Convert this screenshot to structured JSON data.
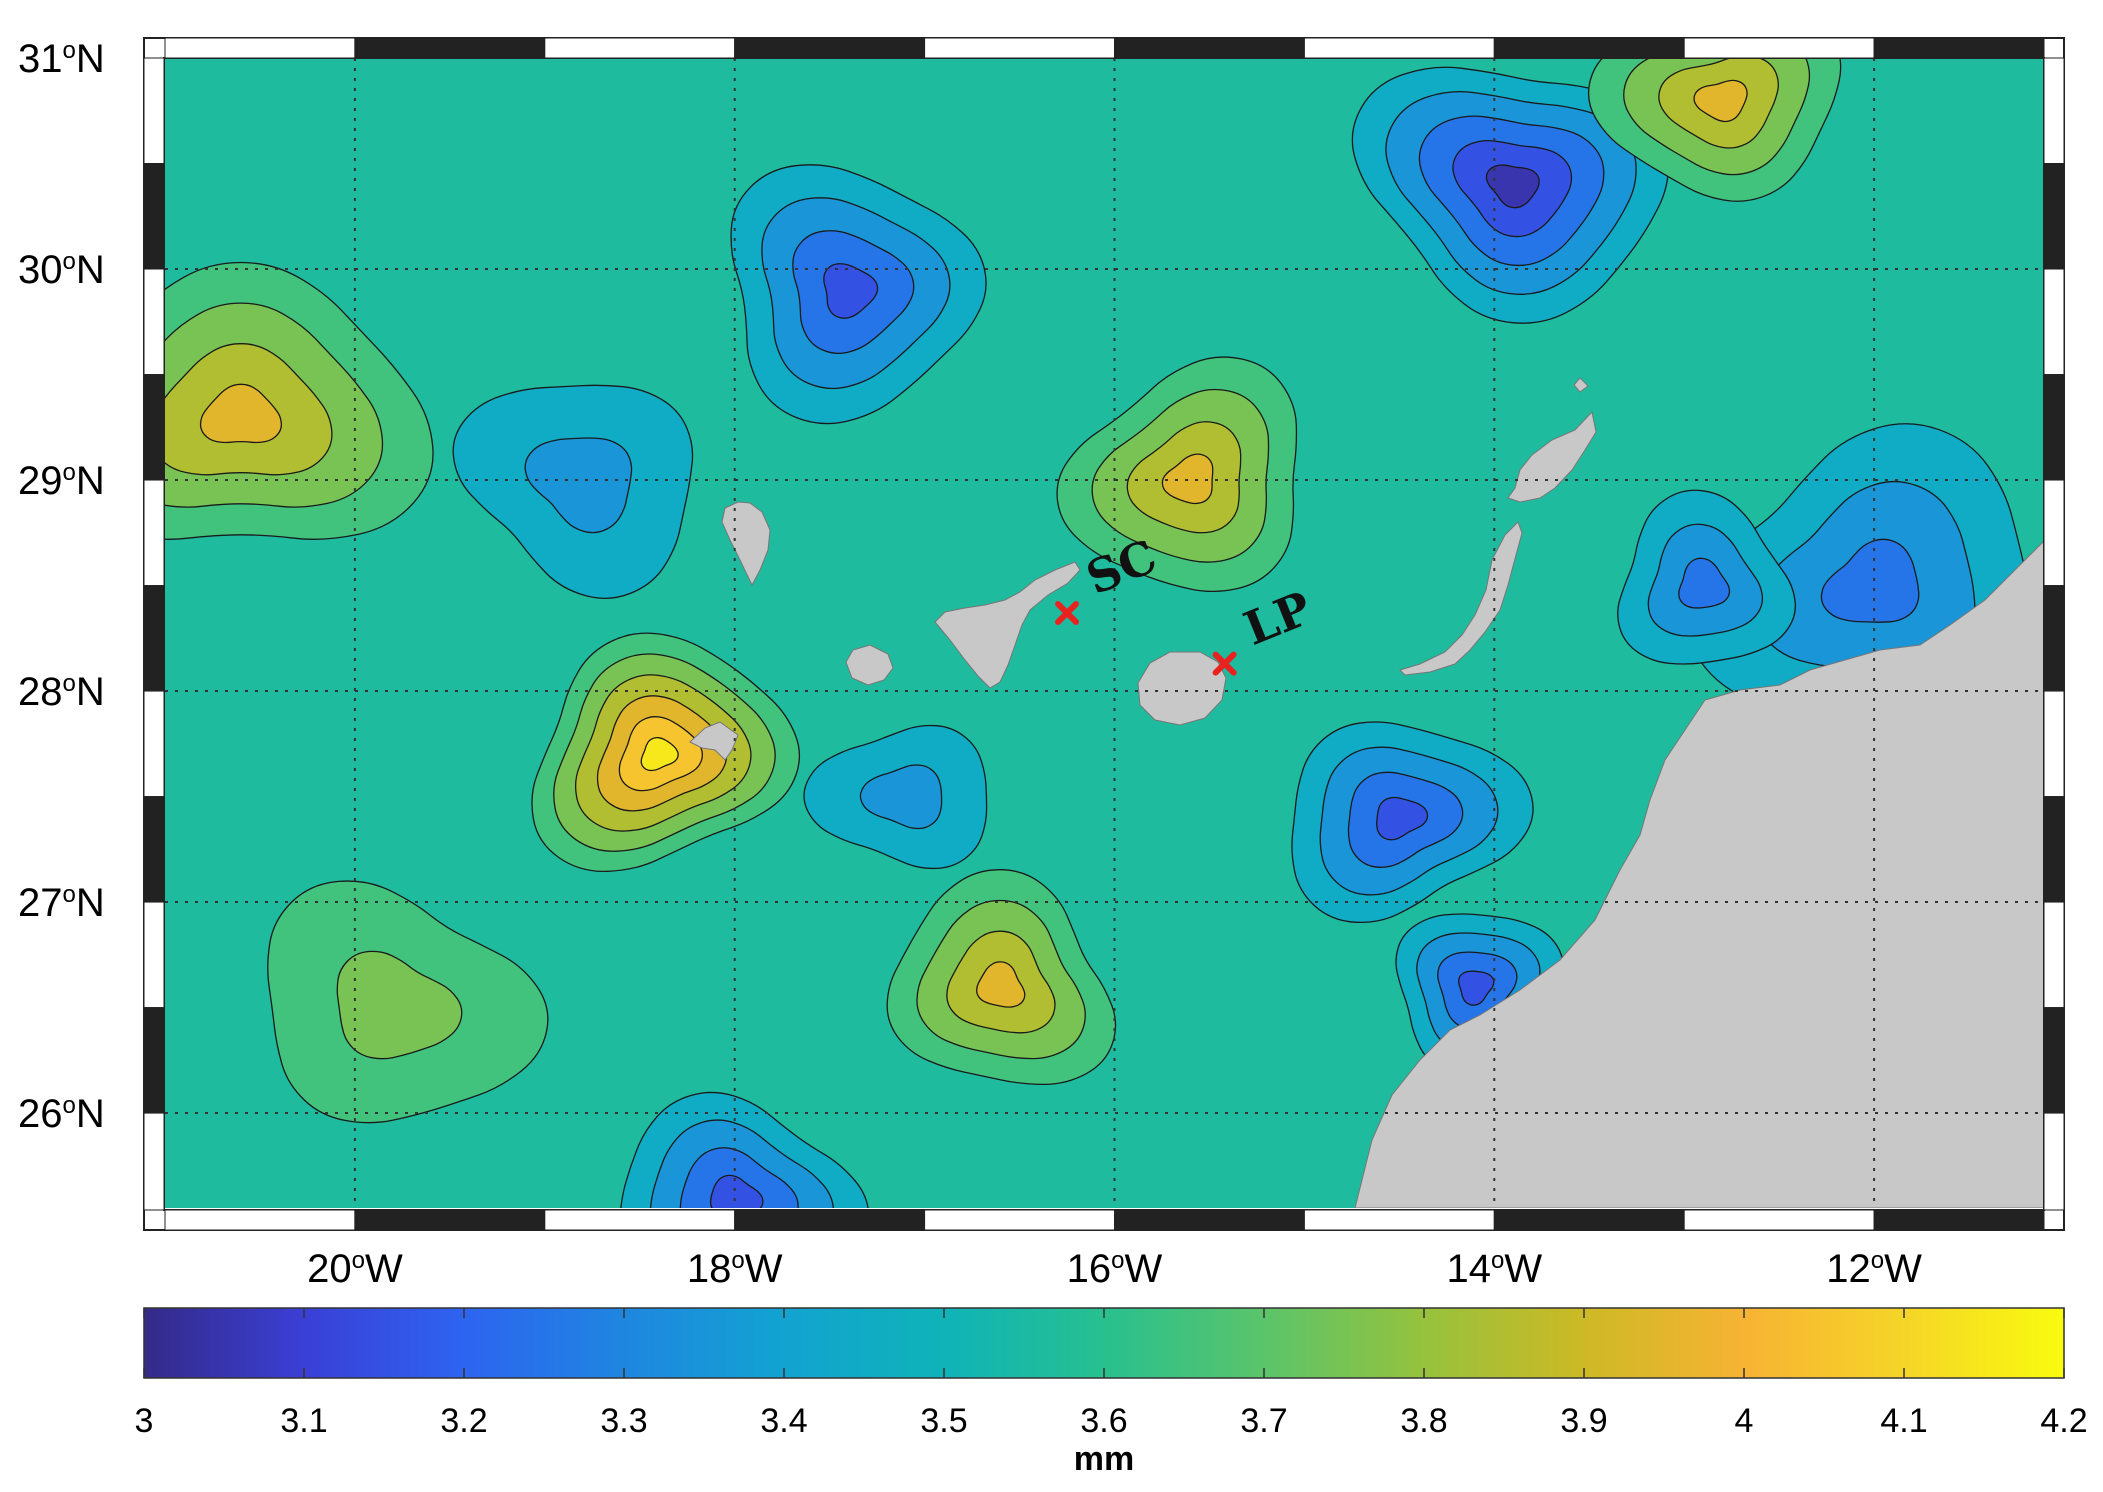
{
  "map": {
    "latitude_ticks": [
      {
        "value": 31,
        "deg": "31",
        "hemi": "N"
      },
      {
        "value": 30,
        "deg": "30",
        "hemi": "N"
      },
      {
        "value": 29,
        "deg": "29",
        "hemi": "N"
      },
      {
        "value": 28,
        "deg": "28",
        "hemi": "N"
      },
      {
        "value": 27,
        "deg": "27",
        "hemi": "N"
      },
      {
        "value": 26,
        "deg": "26",
        "hemi": "N"
      }
    ],
    "longitude_ticks": [
      {
        "value": -20,
        "deg": "20",
        "hemi": "W"
      },
      {
        "value": -18,
        "deg": "18",
        "hemi": "W"
      },
      {
        "value": -16,
        "deg": "16",
        "hemi": "W"
      },
      {
        "value": -14,
        "deg": "14",
        "hemi": "W"
      },
      {
        "value": -12,
        "deg": "12",
        "hemi": "W"
      }
    ],
    "lon_range": [
      -21.0,
      -11.1
    ],
    "lat_range": [
      25.55,
      31.0
    ],
    "grid": "dotted",
    "land_color": "#c8c8c8",
    "sites": [
      {
        "label": "SC",
        "lon": -16.25,
        "lat": 28.37,
        "marker": "x",
        "color": "#e8231f"
      },
      {
        "label": "LP",
        "lon": -15.42,
        "lat": 28.13,
        "marker": "x",
        "color": "#e8231f"
      }
    ],
    "field_centers": [
      {
        "lon": -20.6,
        "lat": 29.3,
        "value": 3.95,
        "radius": 0.9
      },
      {
        "lon": -18.4,
        "lat": 27.7,
        "value": 4.15,
        "radius": 0.65
      },
      {
        "lon": -17.4,
        "lat": 29.9,
        "value": 3.2,
        "radius": 0.7
      },
      {
        "lon": -13.9,
        "lat": 30.4,
        "value": 3.08,
        "radius": 0.75
      },
      {
        "lon": -12.8,
        "lat": 30.8,
        "value": 3.95,
        "radius": 0.6
      },
      {
        "lon": -15.6,
        "lat": 29.0,
        "value": 3.9,
        "radius": 0.65
      },
      {
        "lon": -16.6,
        "lat": 26.6,
        "value": 3.92,
        "radius": 0.6
      },
      {
        "lon": -18.0,
        "lat": 25.6,
        "value": 3.15,
        "radius": 0.6
      },
      {
        "lon": -14.5,
        "lat": 27.4,
        "value": 3.15,
        "radius": 0.6
      },
      {
        "lon": -14.1,
        "lat": 26.6,
        "value": 3.2,
        "radius": 0.45
      },
      {
        "lon": -18.8,
        "lat": 29.0,
        "value": 3.35,
        "radius": 0.7
      },
      {
        "lon": -17.1,
        "lat": 27.5,
        "value": 3.4,
        "radius": 0.5
      },
      {
        "lon": -12.0,
        "lat": 28.5,
        "value": 3.3,
        "radius": 0.9
      },
      {
        "lon": -12.9,
        "lat": 28.5,
        "value": 3.3,
        "radius": 0.5
      },
      {
        "lon": -19.8,
        "lat": 26.5,
        "value": 3.72,
        "radius": 0.8
      }
    ],
    "field_base_value": 3.56
  },
  "colorbar": {
    "min": 3,
    "max": 4.2,
    "ticks": [
      "3",
      "3.1",
      "3.2",
      "3.3",
      "3.4",
      "3.5",
      "3.6",
      "3.7",
      "3.8",
      "3.9",
      "4",
      "4.1",
      "4.2"
    ],
    "unit": "mm",
    "colors": [
      "#352a87",
      "#3a3fd6",
      "#2d64f0",
      "#1f86e0",
      "#12a3d0",
      "#0fb3b8",
      "#28c08f",
      "#5bc46a",
      "#96c23d",
      "#cdb925",
      "#f7b334",
      "#f5d528",
      "#f9fb0e"
    ]
  }
}
